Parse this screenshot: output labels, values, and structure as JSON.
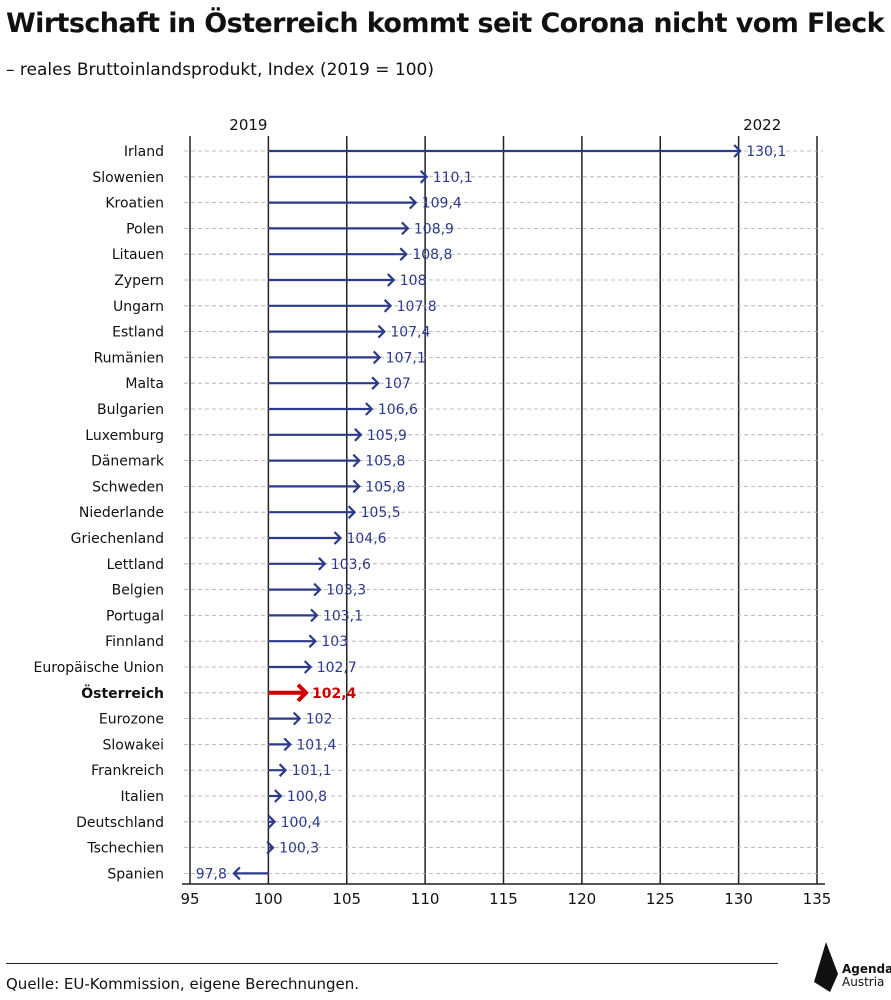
{
  "header": {
    "title": "Wirtschaft in Österreich kommt seit Corona nicht vom Fleck",
    "subtitle": "– reales Bruttoinlandsprodukt, Index (2019 = 100)"
  },
  "footer": {
    "source": "Quelle: EU-Kommission, eigene Berechnungen.",
    "logo_line1": "Agenda",
    "logo_line2": "Austria"
  },
  "colors": {
    "arrow": "#2b3a8a",
    "highlight": "#cc0000",
    "grid": "#222222",
    "gridline": "#aaaaaa"
  },
  "chart_data": {
    "type": "bar",
    "baseline": 100,
    "baseline_label": "2019",
    "end_label": "2022",
    "xlim": [
      95,
      135
    ],
    "xticks": [
      95,
      100,
      105,
      110,
      115,
      120,
      125,
      130,
      135
    ],
    "highlight": "Österreich",
    "categories": [
      "Irland",
      "Slowenien",
      "Kroatien",
      "Polen",
      "Litauen",
      "Zypern",
      "Ungarn",
      "Estland",
      "Rumänien",
      "Malta",
      "Bulgarien",
      "Luxemburg",
      "Dänemark",
      "Schweden",
      "Niederlande",
      "Griechenland",
      "Lettland",
      "Belgien",
      "Portugal",
      "Finnland",
      "Europäische Union",
      "Österreich",
      "Eurozone",
      "Slowakei",
      "Frankreich",
      "Italien",
      "Deutschland",
      "Tschechien",
      "Spanien"
    ],
    "values": [
      130.1,
      110.1,
      109.4,
      108.9,
      108.8,
      108,
      107.8,
      107.4,
      107.1,
      107,
      106.6,
      105.9,
      105.8,
      105.8,
      105.5,
      104.6,
      103.6,
      103.3,
      103.1,
      103,
      102.7,
      102.4,
      102,
      101.4,
      101.1,
      100.8,
      100.4,
      100.3,
      97.8
    ],
    "labels": [
      "130,1",
      "110,1",
      "109,4",
      "108,9",
      "108,8",
      "108",
      "107,8",
      "107,4",
      "107,1",
      "107",
      "106,6",
      "105,9",
      "105,8",
      "105,8",
      "105,5",
      "104,6",
      "103,6",
      "103,3",
      "103,1",
      "103",
      "102,7",
      "102,4",
      "102",
      "101,4",
      "101,1",
      "100,8",
      "100,4",
      "100,3",
      "97,8"
    ]
  }
}
